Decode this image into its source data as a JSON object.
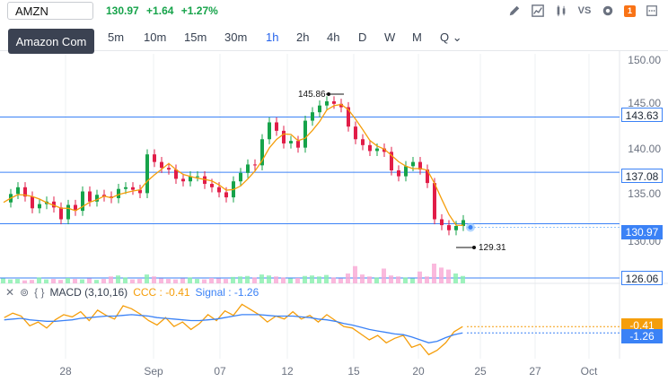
{
  "symbol_input": {
    "value": "AMZN"
  },
  "quote": {
    "price": "130.97",
    "change": "+1.64",
    "change_pct": "+1.27%"
  },
  "tooltip": "Amazon Com",
  "toolbar_icons": [
    "pencil-icon",
    "chart-area-icon",
    "candles-icon",
    "vs-icon",
    "gear-icon",
    "badge-icon",
    "more-icon"
  ],
  "toolbar": {
    "vs_label": "VS",
    "badge": "1"
  },
  "intervals": [
    {
      "label": "5m",
      "active": false
    },
    {
      "label": "10m",
      "active": false
    },
    {
      "label": "15m",
      "active": false
    },
    {
      "label": "30m",
      "active": false
    },
    {
      "label": "1h",
      "active": true
    },
    {
      "label": "2h",
      "active": false
    },
    {
      "label": "4h",
      "active": false
    },
    {
      "label": "D",
      "active": false
    },
    {
      "label": "W",
      "active": false
    },
    {
      "label": "M",
      "active": false
    },
    {
      "label": "Q",
      "active": false
    }
  ],
  "chart_data": {
    "type": "candlestick",
    "y_axis_labels": [
      "150.00",
      "145.00",
      "140.00",
      "135.00",
      "130.00"
    ],
    "ylim": [
      129,
      150.5
    ],
    "x_axis_labels": [
      "28",
      "Sep",
      "07",
      "12",
      "15",
      "20",
      "25",
      "27",
      "Oct"
    ],
    "h_lines": [
      "143.63",
      "137.08",
      "130.97",
      "126.06"
    ],
    "price_tags": [
      {
        "label": "143.63",
        "style": "outline"
      },
      {
        "label": "137.08",
        "style": "outline"
      },
      {
        "label": "130.97",
        "style": "blue"
      },
      {
        "label": "126.06",
        "style": "outline"
      }
    ],
    "annotations": {
      "high": "145.86",
      "low": "129.31"
    },
    "current_price": 130.97,
    "price_path": [
      133.5,
      134.5,
      135.3,
      134.2,
      132.8,
      133.3,
      133.6,
      132.9,
      131.5,
      133.2,
      132.5,
      134.8,
      133.6,
      134.4,
      134.2,
      134.0,
      135.1,
      135.3,
      135.0,
      134.6,
      139.2,
      138.3,
      137.6,
      137.4,
      136.3,
      136.0,
      136.6,
      136.6,
      135.7,
      135.3,
      134.7,
      134.1,
      136.0,
      137.0,
      138.0,
      137.9,
      141.0,
      143.0,
      142.0,
      140.5,
      140.8,
      140.0,
      143.2,
      144.2,
      145.0,
      145.5,
      145.2,
      144.8,
      142.5,
      141.0,
      140.3,
      139.6,
      139.9,
      139.5,
      137.3,
      136.6,
      137.8,
      138.3,
      137.4,
      135.8,
      131.5,
      130.8,
      130.2,
      130.7,
      131.4
    ],
    "volume": [
      10,
      8,
      9,
      6,
      7,
      12,
      8,
      9,
      7,
      11,
      9,
      8,
      10,
      7,
      9,
      14,
      16,
      12,
      8,
      9,
      18,
      14,
      10,
      9,
      8,
      10,
      12,
      9,
      8,
      11,
      10,
      9,
      13,
      14,
      15,
      12,
      18,
      16,
      14,
      12,
      10,
      11,
      15,
      16,
      14,
      17,
      12,
      10,
      20,
      35,
      18,
      14,
      12,
      30,
      16,
      14,
      12,
      10,
      24,
      14,
      40,
      32,
      28,
      20,
      15
    ],
    "macd": {
      "ccc_label": "CCC : -0.41",
      "signal_label": "Signal : -1.26",
      "ccc_tag": "-0.41",
      "signal_tag": "-1.26",
      "ccc_line": [
        0.8,
        1.4,
        1.0,
        -0.3,
        0.2,
        -0.6,
        0.5,
        1.2,
        0.9,
        1.6,
        0.4,
        1.8,
        1.1,
        0.6,
        2.4,
        2.0,
        1.3,
        0.4,
        -0.2,
        0.8,
        -0.4,
        0.2,
        -0.8,
        0.0,
        1.2,
        0.4,
        1.7,
        1.1,
        2.6,
        1.9,
        1.2,
        0.2,
        1.0,
        0.6,
        1.6,
        0.6,
        1.1,
        0.2,
        1.2,
        0.4,
        -0.4,
        -0.6,
        -1.4,
        -2.2,
        -1.6,
        -2.6,
        -2.0,
        -1.6,
        -3.2,
        -2.8,
        -4.2,
        -3.6,
        -2.6,
        -1.1,
        -0.41
      ],
      "signal_line": [
        0.5,
        0.6,
        0.7,
        0.5,
        0.4,
        0.3,
        0.3,
        0.4,
        0.5,
        0.7,
        0.8,
        0.9,
        1.0,
        1.0,
        1.1,
        1.2,
        1.1,
        1.0,
        0.8,
        0.7,
        0.6,
        0.5,
        0.4,
        0.4,
        0.5,
        0.6,
        0.8,
        1.0,
        1.2,
        1.2,
        1.2,
        1.1,
        1.0,
        1.0,
        1.0,
        0.9,
        0.8,
        0.6,
        0.5,
        0.3,
        0.0,
        -0.2,
        -0.5,
        -0.8,
        -1.0,
        -1.2,
        -1.4,
        -1.5,
        -1.8,
        -2.2,
        -2.6,
        -2.4,
        -1.9,
        -1.5,
        -1.26
      ]
    },
    "macd_header": {
      "label": "MACD (3,10,16)"
    }
  }
}
